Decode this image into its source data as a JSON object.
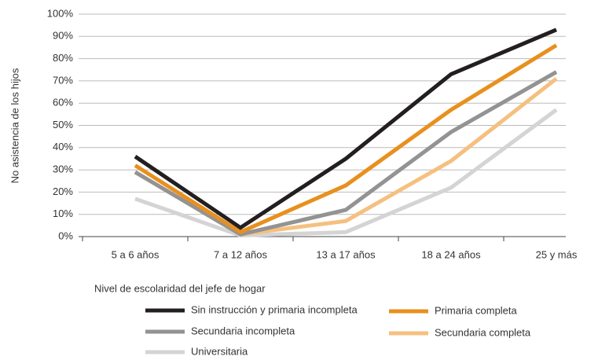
{
  "chart_data": {
    "type": "line",
    "y_label": "No asistencia de los hijos",
    "categories": [
      "5 a 6 años",
      "7 a 12 años",
      "13 a 17 años",
      "18 a 24 años",
      "25 y más"
    ],
    "series": [
      {
        "name": "Sin instrucción y primaria incompleta",
        "color": "#231f20",
        "values": [
          36,
          4,
          35,
          73,
          93
        ]
      },
      {
        "name": "Primaria completa",
        "color": "#e8901e",
        "values": [
          32,
          2,
          23,
          57,
          86
        ]
      },
      {
        "name": "Secundaria incompleta",
        "color": "#939393",
        "values": [
          29,
          1,
          12,
          47,
          74
        ]
      },
      {
        "name": "Secundaria completa",
        "color": "#f5c07f",
        "values": [
          29,
          1,
          7,
          34,
          71
        ]
      },
      {
        "name": "Universitaria",
        "color": "#d4d4d4",
        "values": [
          17,
          0.5,
          2,
          22,
          57
        ]
      }
    ],
    "legend_title": "Nivel de escolaridad del jefe de hogar",
    "ylim": [
      0,
      100
    ],
    "yticks": [
      {
        "value": 0,
        "label": "0%"
      },
      {
        "value": 10,
        "label": "10%"
      },
      {
        "value": 20,
        "label": "20%"
      },
      {
        "value": 30,
        "label": "30%"
      },
      {
        "value": 40,
        "label": "40%"
      },
      {
        "value": 50,
        "label": "50%"
      },
      {
        "value": 60,
        "label": "60%"
      },
      {
        "value": 70,
        "label": "70%"
      },
      {
        "value": 80,
        "label": "80%"
      },
      {
        "value": 90,
        "label": "90%"
      },
      {
        "value": 100,
        "label": "100%"
      }
    ],
    "grid": true
  }
}
